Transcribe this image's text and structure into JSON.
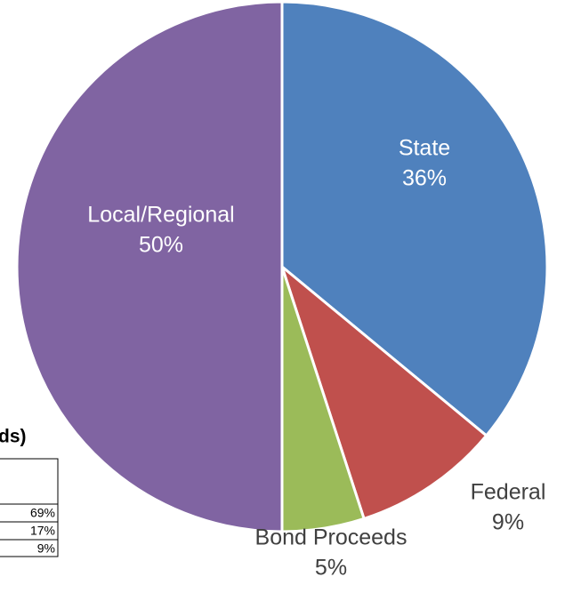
{
  "chart_data": {
    "type": "pie",
    "categories": [
      "State",
      "Federal",
      "Bond Proceeds",
      "Local/Regional"
    ],
    "values": [
      36,
      9,
      5,
      50
    ],
    "value_labels": [
      "36%",
      "9%",
      "5%",
      "50%"
    ],
    "colors": [
      "#4f81bd",
      "#c0504d",
      "#9bbb59",
      "#8064a2"
    ]
  },
  "table": {
    "title": "ds)",
    "rows": [
      [
        "69%"
      ],
      [
        "17%"
      ],
      [
        "9%"
      ]
    ]
  }
}
